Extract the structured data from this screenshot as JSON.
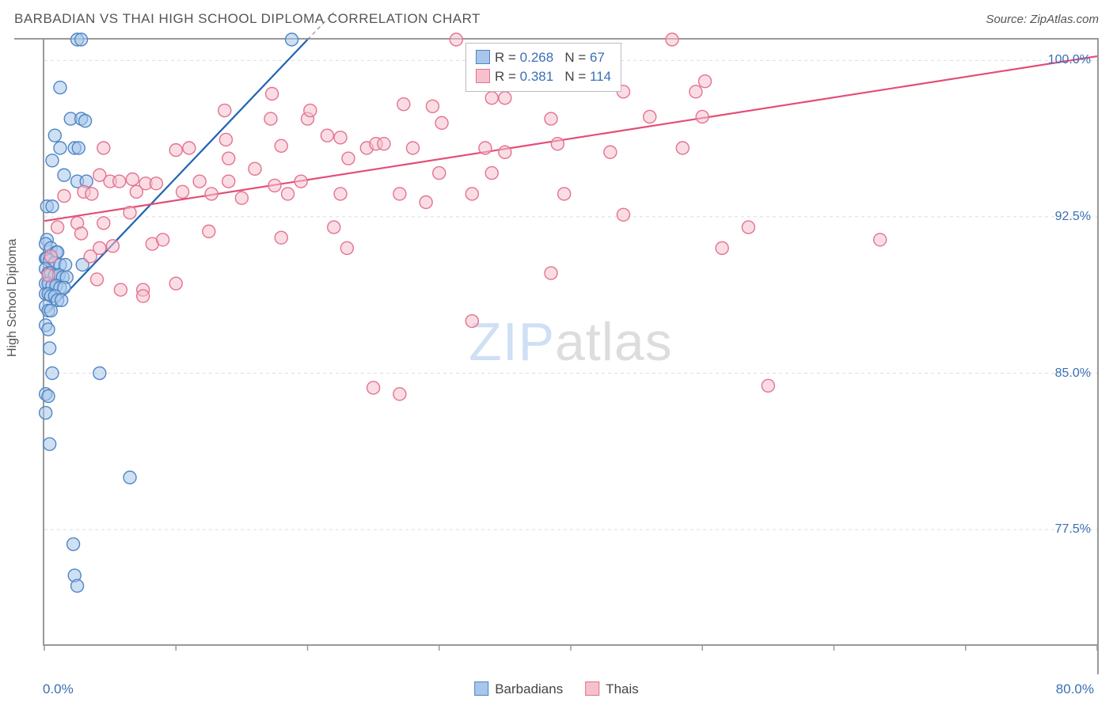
{
  "header": {
    "title": "BARBADIAN VS THAI HIGH SCHOOL DIPLOMA CORRELATION CHART",
    "source": "Source: ZipAtlas.com"
  },
  "chart": {
    "type": "scatter",
    "y_axis_label": "High School Diploma",
    "watermark_zip": "ZIP",
    "watermark_atlas": "atlas",
    "xlim": [
      0,
      80
    ],
    "ylim": [
      72,
      101
    ],
    "x_tick_labels": {
      "min": "0.0%",
      "max": "80.0%"
    },
    "y_ticks": [
      77.5,
      85.0,
      92.5,
      100.0
    ],
    "y_tick_labels": [
      "77.5%",
      "85.0%",
      "92.5%",
      "100.0%"
    ],
    "x_ticks_minor": [
      0,
      10,
      20,
      30,
      40,
      50,
      60,
      70,
      80
    ],
    "grid_color": "#dddddd",
    "axis_color": "#999999",
    "background_color": "#ffffff",
    "marker_radius": 8,
    "marker_stroke_width": 1.4,
    "trend_line_width": 2.2,
    "series": [
      {
        "name": "Barbadians",
        "marker_fill": "#a7c6ea",
        "marker_stroke": "#4f86c6",
        "marker_opacity": 0.55,
        "trend_color": "#1f63b0",
        "trend_p1": [
          0.4,
          88.0
        ],
        "trend_p2": [
          20.0,
          101.0
        ],
        "trend_dash_p1": [
          20.0,
          101.0
        ],
        "trend_dash_p2": [
          22.0,
          102.3
        ],
        "R": "0.268",
        "N": "67",
        "points": [
          [
            2.5,
            101.0
          ],
          [
            2.8,
            101.0
          ],
          [
            18.8,
            101.0
          ],
          [
            1.2,
            98.7
          ],
          [
            2.0,
            97.2
          ],
          [
            2.8,
            97.2
          ],
          [
            3.1,
            97.1
          ],
          [
            0.8,
            96.4
          ],
          [
            1.2,
            95.8
          ],
          [
            2.3,
            95.8
          ],
          [
            2.6,
            95.8
          ],
          [
            0.6,
            95.2
          ],
          [
            1.5,
            94.5
          ],
          [
            2.5,
            94.2
          ],
          [
            3.2,
            94.2
          ],
          [
            0.2,
            93.0
          ],
          [
            0.6,
            93.0
          ],
          [
            0.2,
            91.4
          ],
          [
            0.1,
            91.2
          ],
          [
            0.5,
            91.0
          ],
          [
            0.9,
            90.8
          ],
          [
            1.0,
            90.8
          ],
          [
            0.1,
            90.5
          ],
          [
            0.2,
            90.5
          ],
          [
            0.4,
            90.4
          ],
          [
            0.8,
            90.3
          ],
          [
            1.2,
            90.2
          ],
          [
            1.6,
            90.2
          ],
          [
            2.9,
            90.2
          ],
          [
            0.1,
            90.0
          ],
          [
            0.3,
            89.8
          ],
          [
            0.5,
            89.8
          ],
          [
            0.8,
            89.7
          ],
          [
            1.1,
            89.7
          ],
          [
            1.4,
            89.6
          ],
          [
            1.7,
            89.6
          ],
          [
            0.1,
            89.3
          ],
          [
            0.3,
            89.3
          ],
          [
            0.6,
            89.2
          ],
          [
            0.9,
            89.2
          ],
          [
            1.2,
            89.1
          ],
          [
            1.5,
            89.1
          ],
          [
            0.1,
            88.8
          ],
          [
            0.3,
            88.8
          ],
          [
            0.5,
            88.7
          ],
          [
            0.8,
            88.7
          ],
          [
            1.0,
            88.5
          ],
          [
            1.3,
            88.5
          ],
          [
            0.1,
            88.2
          ],
          [
            0.3,
            88.0
          ],
          [
            0.5,
            88.0
          ],
          [
            0.1,
            87.3
          ],
          [
            0.3,
            87.1
          ],
          [
            0.4,
            86.2
          ],
          [
            0.6,
            85.0
          ],
          [
            4.2,
            85.0
          ],
          [
            0.1,
            84.0
          ],
          [
            0.3,
            83.9
          ],
          [
            0.1,
            83.1
          ],
          [
            0.4,
            81.6
          ],
          [
            6.5,
            80.0
          ],
          [
            2.2,
            76.8
          ],
          [
            2.3,
            75.3
          ],
          [
            2.5,
            74.8
          ]
        ]
      },
      {
        "name": "Thais",
        "marker_fill": "#f6c1cd",
        "marker_stroke": "#e47290",
        "marker_opacity": 0.55,
        "trend_color": "#e34d76",
        "trend_p1": [
          0.0,
          92.3
        ],
        "trend_p2": [
          80.0,
          100.2
        ],
        "R": "0.381",
        "N": "114",
        "points": [
          [
            31.3,
            101.0
          ],
          [
            47.7,
            101.0
          ],
          [
            17.3,
            98.4
          ],
          [
            34.0,
            98.2
          ],
          [
            35.0,
            98.2
          ],
          [
            44.0,
            98.5
          ],
          [
            49.5,
            98.5
          ],
          [
            50.2,
            99.0
          ],
          [
            13.7,
            97.6
          ],
          [
            17.2,
            97.2
          ],
          [
            20.0,
            97.2
          ],
          [
            20.2,
            97.6
          ],
          [
            27.3,
            97.9
          ],
          [
            29.5,
            97.8
          ],
          [
            30.2,
            97.0
          ],
          [
            38.5,
            97.2
          ],
          [
            46.0,
            97.3
          ],
          [
            50.0,
            97.3
          ],
          [
            4.5,
            95.8
          ],
          [
            10.0,
            95.7
          ],
          [
            11.0,
            95.8
          ],
          [
            13.8,
            96.2
          ],
          [
            14.0,
            95.3
          ],
          [
            18.0,
            95.9
          ],
          [
            21.5,
            96.4
          ],
          [
            22.5,
            96.3
          ],
          [
            23.1,
            95.3
          ],
          [
            24.5,
            95.8
          ],
          [
            25.2,
            96.0
          ],
          [
            25.8,
            96.0
          ],
          [
            28.0,
            95.8
          ],
          [
            33.5,
            95.8
          ],
          [
            35.0,
            95.6
          ],
          [
            39.0,
            96.0
          ],
          [
            43.0,
            95.6
          ],
          [
            48.5,
            95.8
          ],
          [
            1.5,
            93.5
          ],
          [
            3.0,
            93.7
          ],
          [
            3.6,
            93.6
          ],
          [
            4.2,
            94.5
          ],
          [
            5.0,
            94.2
          ],
          [
            5.7,
            94.2
          ],
          [
            6.7,
            94.3
          ],
          [
            7.0,
            93.7
          ],
          [
            7.7,
            94.1
          ],
          [
            8.5,
            94.1
          ],
          [
            10.5,
            93.7
          ],
          [
            11.8,
            94.2
          ],
          [
            12.7,
            93.6
          ],
          [
            14.0,
            94.2
          ],
          [
            15.0,
            93.4
          ],
          [
            16.0,
            94.8
          ],
          [
            17.5,
            94.0
          ],
          [
            18.5,
            93.6
          ],
          [
            19.5,
            94.2
          ],
          [
            22.5,
            93.6
          ],
          [
            27.0,
            93.6
          ],
          [
            29.0,
            93.2
          ],
          [
            30.0,
            94.6
          ],
          [
            32.5,
            93.6
          ],
          [
            34.0,
            94.6
          ],
          [
            39.5,
            93.6
          ],
          [
            44.0,
            92.6
          ],
          [
            1.0,
            92.0
          ],
          [
            2.5,
            92.2
          ],
          [
            2.8,
            91.7
          ],
          [
            4.5,
            92.2
          ],
          [
            6.5,
            92.7
          ],
          [
            12.5,
            91.8
          ],
          [
            18.0,
            91.5
          ],
          [
            22.0,
            92.0
          ],
          [
            53.5,
            92.0
          ],
          [
            0.5,
            90.6
          ],
          [
            3.5,
            90.6
          ],
          [
            4.2,
            91.0
          ],
          [
            5.2,
            91.1
          ],
          [
            8.2,
            91.2
          ],
          [
            9.0,
            91.4
          ],
          [
            23.0,
            91.0
          ],
          [
            51.5,
            91.0
          ],
          [
            63.5,
            91.4
          ],
          [
            0.3,
            89.7
          ],
          [
            4.0,
            89.5
          ],
          [
            5.8,
            89.0
          ],
          [
            7.5,
            89.0
          ],
          [
            10.0,
            89.3
          ],
          [
            38.5,
            89.8
          ],
          [
            7.5,
            88.7
          ],
          [
            32.5,
            87.5
          ],
          [
            25.0,
            84.3
          ],
          [
            27.0,
            84.0
          ],
          [
            55.0,
            84.4
          ]
        ]
      }
    ],
    "stats_legend": {
      "rows": [
        {
          "swatch_fill": "#a7c6ea",
          "swatch_stroke": "#4f86c6",
          "r_lbl": "R =",
          "r_val": "0.268",
          "n_lbl": "N =",
          "n_val": " 67"
        },
        {
          "swatch_fill": "#f6c1cd",
          "swatch_stroke": "#e47290",
          "r_lbl": "R =",
          "r_val": "0.381",
          "n_lbl": "N =",
          "n_val": "114"
        }
      ]
    },
    "bottom_legend": [
      {
        "swatch_fill": "#a7c6ea",
        "swatch_stroke": "#4f86c6",
        "label": "Barbadians"
      },
      {
        "swatch_fill": "#f6c1cd",
        "swatch_stroke": "#e47290",
        "label": "Thais"
      }
    ]
  }
}
